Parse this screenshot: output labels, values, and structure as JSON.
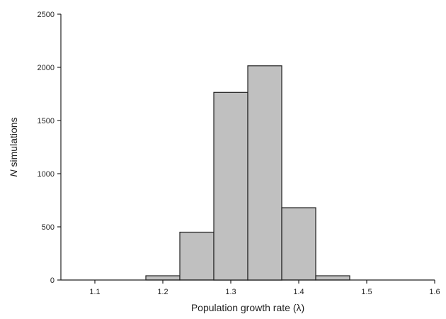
{
  "chart_data": {
    "type": "histogram",
    "title": "",
    "xlabel": "Population growth rate (λ)",
    "ylabel": {
      "italic": "N",
      "text": " simulations"
    },
    "xlim": [
      1.05,
      1.6
    ],
    "ylim": [
      0,
      2500
    ],
    "xticks": [
      "1.1",
      "1.2",
      "1.3",
      "1.4",
      "1.5",
      "1.6"
    ],
    "yticks": [
      "0",
      "500",
      "1000",
      "1500",
      "2000",
      "2500"
    ],
    "bins": [
      {
        "x0": 1.175,
        "x1": 1.225,
        "value": 40
      },
      {
        "x0": 1.225,
        "x1": 1.275,
        "value": 450
      },
      {
        "x0": 1.275,
        "x1": 1.325,
        "value": 1765
      },
      {
        "x0": 1.325,
        "x1": 1.375,
        "value": 2015
      },
      {
        "x0": 1.375,
        "x1": 1.425,
        "value": 680
      },
      {
        "x0": 1.425,
        "x1": 1.475,
        "value": 40
      }
    ],
    "bar_color": "#c0c0c0",
    "edge_color": "#222222",
    "grid": false,
    "legend": "none"
  }
}
